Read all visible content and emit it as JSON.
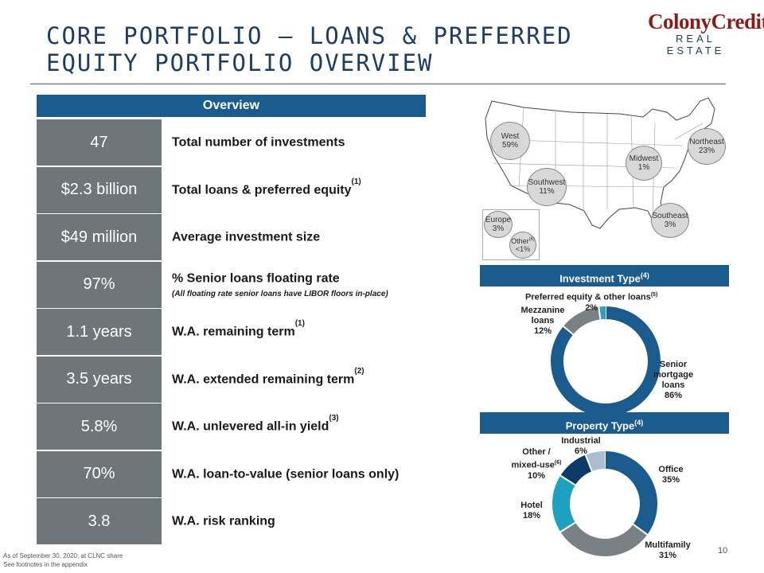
{
  "header": {
    "title_line1": "CORE PORTFOLIO – LOANS & PREFERRED",
    "title_line2": "EQUITY PORTFOLIO OVERVIEW",
    "logo_line1": "ColonyCredit",
    "logo_line2": "REAL ESTATE"
  },
  "overview": {
    "heading": "Overview",
    "rows": [
      {
        "value": "47",
        "label": "Total number of investments",
        "fn": "",
        "sub": ""
      },
      {
        "value": "$2.3 billion",
        "label": "Total loans & preferred equity",
        "fn": "(1)",
        "sub": ""
      },
      {
        "value": "$49 million",
        "label": "Average investment size",
        "fn": "",
        "sub": ""
      },
      {
        "value": "97%",
        "label": "% Senior loans floating rate",
        "fn": "",
        "sub": "(All floating rate senior loans have LIBOR floors in-place)"
      },
      {
        "value": "1.1 years",
        "label": "W.A. remaining term",
        "fn": "(1)",
        "sub": ""
      },
      {
        "value": "3.5 years",
        "label": "W.A. extended remaining term",
        "fn": "(2)",
        "sub": ""
      },
      {
        "value": "5.8%",
        "label": "W.A. unlevered all-in yield",
        "fn": "(3)",
        "sub": ""
      },
      {
        "value": "70%",
        "label": "W.A. loan-to-value (senior loans only)",
        "fn": "",
        "sub": ""
      },
      {
        "value": "3.8",
        "label": "W.A. risk ranking",
        "fn": "",
        "sub": ""
      }
    ]
  },
  "map": {
    "regions": {
      "west": {
        "name": "West",
        "pct": "59%"
      },
      "southwest": {
        "name": "Southwest",
        "pct": "11%"
      },
      "midwest": {
        "name": "Midwest",
        "pct": "1%"
      },
      "northeast": {
        "name": "Northeast",
        "pct": "23%"
      },
      "southeast": {
        "name": "Southeast",
        "pct": "3%"
      },
      "europe": {
        "name": "Europe",
        "pct": "3%"
      },
      "other": {
        "name": "Other",
        "fn": "(6)",
        "pct": "<1%"
      }
    }
  },
  "investment_type": {
    "heading": "Investment Type",
    "fn": "(4)",
    "preferred_label": "Preferred equity & other loans",
    "preferred_fn": "(5)",
    "preferred_pct": "2%",
    "mezz_label1": "Mezzanine",
    "mezz_label2": "loans",
    "mezz_pct": "12%",
    "senior_label1": "Senior",
    "senior_label2": "mortgage",
    "senior_label3": "loans",
    "senior_pct": "86%"
  },
  "property_type": {
    "heading": "Property Type",
    "fn": "(4)",
    "industrial_label": "Industrial",
    "industrial_pct": "6%",
    "other_label1": "Other /",
    "other_label2": "mixed-use",
    "other_fn": "(6)",
    "other_pct": "10%",
    "office_label": "Office",
    "office_pct": "35%",
    "hotel_label": "Hotel",
    "hotel_pct": "18%",
    "multifamily_label": "Multifamily",
    "multifamily_pct": "31%"
  },
  "chart_data": [
    {
      "type": "pie",
      "title": "Investment Type",
      "categories": [
        "Senior mortgage loans",
        "Mezzanine loans",
        "Preferred equity & other loans"
      ],
      "values": [
        86,
        12,
        2
      ],
      "colors": [
        "#1b5b8e",
        "#7a8184",
        "#2a9fc7"
      ]
    },
    {
      "type": "pie",
      "title": "Property Type",
      "categories": [
        "Office",
        "Multifamily",
        "Hotel",
        "Other / mixed-use",
        "Industrial"
      ],
      "values": [
        35,
        31,
        18,
        10,
        6
      ],
      "colors": [
        "#1b5b8e",
        "#7a8184",
        "#1ea0c0",
        "#0d3a66",
        "#a9bfd0"
      ]
    }
  ],
  "footer": {
    "line1": "As of September 30, 2020; at CLNC share",
    "line2": "See footnotes in the appendix",
    "page": "10"
  }
}
